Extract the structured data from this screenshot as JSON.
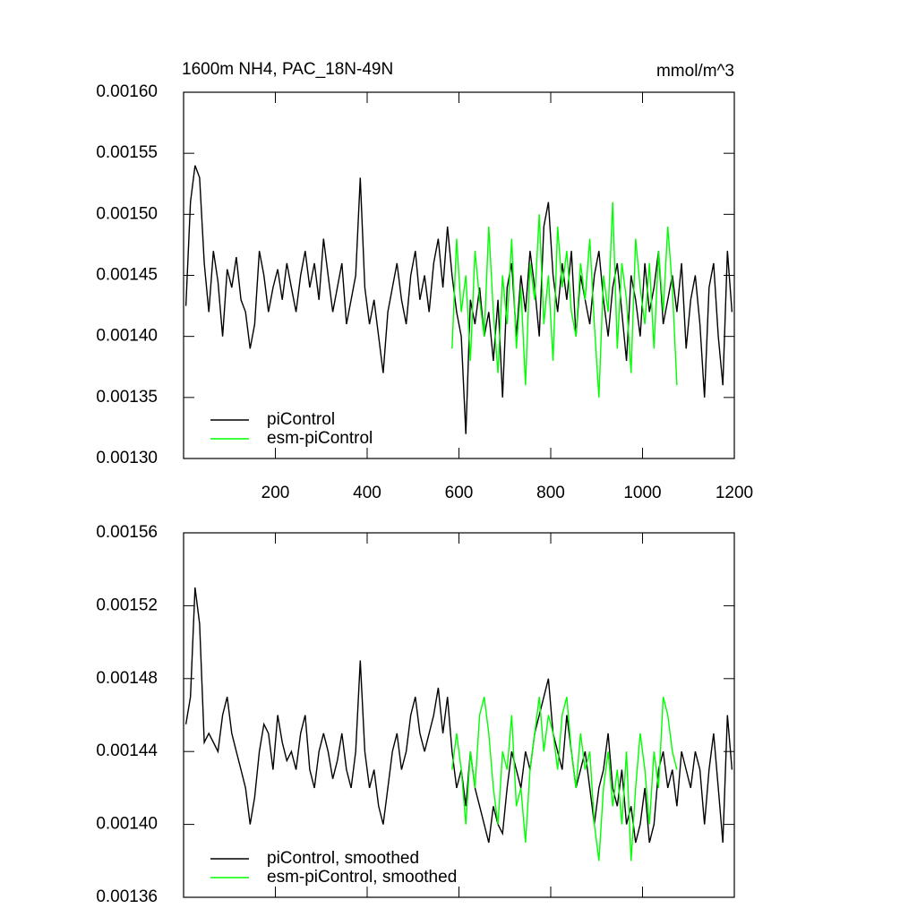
{
  "chart_data": [
    {
      "type": "line",
      "title": "1600m NH4, PAC_18N-49N",
      "units": "mmol/m^3",
      "xlim": [
        0,
        1200
      ],
      "ylim": [
        0.0013,
        0.0016
      ],
      "xticks": [
        200,
        400,
        600,
        800,
        1000,
        1200
      ],
      "xtick_labels": true,
      "yticks": [
        {
          "value": 0.0013,
          "label": "0.00130"
        },
        {
          "value": 0.00135,
          "label": "0.00135"
        },
        {
          "value": 0.0014,
          "label": "0.00140"
        },
        {
          "value": 0.00145,
          "label": "0.00145"
        },
        {
          "value": 0.0015,
          "label": "0.00150"
        },
        {
          "value": 0.00155,
          "label": "0.00155"
        },
        {
          "value": 0.0016,
          "label": "0.00160"
        }
      ],
      "legend": "lower left",
      "series": [
        {
          "name": "piControl",
          "color": "#000000",
          "x": [
            5,
            15,
            25,
            35,
            45,
            55,
            65,
            75,
            85,
            95,
            105,
            115,
            125,
            135,
            145,
            155,
            165,
            175,
            185,
            195,
            205,
            215,
            225,
            235,
            245,
            255,
            265,
            275,
            285,
            295,
            305,
            315,
            325,
            335,
            345,
            355,
            365,
            375,
            385,
            395,
            405,
            415,
            425,
            435,
            445,
            455,
            465,
            475,
            485,
            495,
            505,
            515,
            525,
            535,
            545,
            555,
            565,
            575,
            585,
            595,
            605,
            615,
            625,
            635,
            645,
            655,
            665,
            675,
            685,
            695,
            705,
            715,
            725,
            735,
            745,
            755,
            765,
            775,
            785,
            795,
            805,
            815,
            825,
            835,
            845,
            855,
            865,
            875,
            885,
            895,
            905,
            915,
            925,
            935,
            945,
            955,
            965,
            975,
            985,
            995,
            1005,
            1015,
            1025,
            1035,
            1045,
            1055,
            1065,
            1075,
            1085,
            1095,
            1105,
            1115,
            1125,
            1135,
            1145,
            1155,
            1165,
            1175,
            1185,
            1195
          ],
          "values": [
            0.001425,
            0.00151,
            0.00154,
            0.00153,
            0.00146,
            0.00142,
            0.00147,
            0.001445,
            0.0014,
            0.001455,
            0.00144,
            0.001465,
            0.00143,
            0.00142,
            0.00139,
            0.00141,
            0.00147,
            0.00145,
            0.00142,
            0.00144,
            0.001455,
            0.00143,
            0.00146,
            0.00144,
            0.00142,
            0.00145,
            0.00147,
            0.00144,
            0.00146,
            0.00143,
            0.00148,
            0.00145,
            0.00142,
            0.00144,
            0.00146,
            0.00141,
            0.00143,
            0.00145,
            0.00153,
            0.00144,
            0.00141,
            0.00143,
            0.0014,
            0.00137,
            0.00142,
            0.00144,
            0.00146,
            0.00143,
            0.00141,
            0.00145,
            0.00147,
            0.00143,
            0.00145,
            0.00142,
            0.00146,
            0.00148,
            0.00144,
            0.00149,
            0.00145,
            0.00142,
            0.0014,
            0.00132,
            0.00143,
            0.00141,
            0.00144,
            0.0014,
            0.00142,
            0.00138,
            0.00143,
            0.00135,
            0.00144,
            0.00146,
            0.0014,
            0.00145,
            0.00142,
            0.00147,
            0.00144,
            0.0014,
            0.00149,
            0.00151,
            0.00145,
            0.00142,
            0.00146,
            0.00143,
            0.00147,
            0.0014,
            0.00145,
            0.00143,
            0.00141,
            0.00145,
            0.00147,
            0.00143,
            0.0014,
            0.00144,
            0.00146,
            0.00142,
            0.00138,
            0.00145,
            0.00143,
            0.0014,
            0.00146,
            0.00142,
            0.00144,
            0.00147,
            0.00141,
            0.00143,
            0.00145,
            0.00142,
            0.00146,
            0.00139,
            0.00143,
            0.00145,
            0.00141,
            0.00135,
            0.00144,
            0.00146,
            0.0014,
            0.00136,
            0.00147,
            0.00142
          ]
        },
        {
          "name": "esm-piControl",
          "color": "#00ff00",
          "x": [
            585,
            595,
            605,
            615,
            625,
            635,
            645,
            655,
            665,
            675,
            685,
            695,
            705,
            715,
            725,
            735,
            745,
            755,
            765,
            775,
            785,
            795,
            805,
            815,
            825,
            835,
            845,
            855,
            865,
            875,
            885,
            895,
            905,
            915,
            925,
            935,
            945,
            955,
            965,
            975,
            985,
            995,
            1005,
            1015,
            1025,
            1035,
            1045,
            1055,
            1065,
            1075
          ],
          "values": [
            0.00139,
            0.00148,
            0.00142,
            0.00145,
            0.00138,
            0.00147,
            0.00143,
            0.0014,
            0.00149,
            0.00142,
            0.00137,
            0.00145,
            0.00141,
            0.00148,
            0.00139,
            0.00144,
            0.00136,
            0.00146,
            0.00143,
            0.0015,
            0.00141,
            0.00145,
            0.00138,
            0.00149,
            0.00144,
            0.00147,
            0.00142,
            0.0014,
            0.00146,
            0.00143,
            0.00148,
            0.00141,
            0.00135,
            0.00145,
            0.00142,
            0.00151,
            0.00139,
            0.00146,
            0.00143,
            0.00137,
            0.00148,
            0.00144,
            0.00141,
            0.00146,
            0.00139,
            0.00147,
            0.00142,
            0.00149,
            0.00144,
            0.00136
          ]
        }
      ]
    },
    {
      "type": "line",
      "xlim": [
        0,
        1200
      ],
      "ylim": [
        0.00136,
        0.00156
      ],
      "xticks": [
        200,
        400,
        600,
        800,
        1000,
        1200
      ],
      "xtick_labels": false,
      "yticks": [
        {
          "value": 0.00136,
          "label": "0.00136"
        },
        {
          "value": 0.0014,
          "label": "0.00140"
        },
        {
          "value": 0.00144,
          "label": "0.00144"
        },
        {
          "value": 0.00148,
          "label": "0.00148"
        },
        {
          "value": 0.00152,
          "label": "0.00152"
        },
        {
          "value": 0.00156,
          "label": "0.00156"
        }
      ],
      "legend": "lower left",
      "series": [
        {
          "name": "piControl, smoothed",
          "color": "#000000",
          "x": [
            5,
            15,
            25,
            35,
            45,
            55,
            65,
            75,
            85,
            95,
            105,
            115,
            125,
            135,
            145,
            155,
            165,
            175,
            185,
            195,
            205,
            215,
            225,
            235,
            245,
            255,
            265,
            275,
            285,
            295,
            305,
            315,
            325,
            335,
            345,
            355,
            365,
            375,
            385,
            395,
            405,
            415,
            425,
            435,
            445,
            455,
            465,
            475,
            485,
            495,
            505,
            515,
            525,
            535,
            545,
            555,
            565,
            575,
            585,
            595,
            605,
            615,
            625,
            635,
            645,
            655,
            665,
            675,
            685,
            695,
            705,
            715,
            725,
            735,
            745,
            755,
            765,
            775,
            785,
            795,
            805,
            815,
            825,
            835,
            845,
            855,
            865,
            875,
            885,
            895,
            905,
            915,
            925,
            935,
            945,
            955,
            965,
            975,
            985,
            995,
            1005,
            1015,
            1025,
            1035,
            1045,
            1055,
            1065,
            1075,
            1085,
            1095,
            1105,
            1115,
            1125,
            1135,
            1145,
            1155,
            1165,
            1175,
            1185,
            1195
          ],
          "values": [
            0.001455,
            0.00147,
            0.00153,
            0.00151,
            0.001445,
            0.00145,
            0.001445,
            0.00144,
            0.00146,
            0.00147,
            0.00145,
            0.00144,
            0.00143,
            0.00142,
            0.0014,
            0.001415,
            0.00144,
            0.001455,
            0.00145,
            0.00143,
            0.00146,
            0.001445,
            0.001435,
            0.00144,
            0.00143,
            0.00145,
            0.00146,
            0.00143,
            0.00142,
            0.00144,
            0.00145,
            0.00144,
            0.001425,
            0.001435,
            0.00145,
            0.00143,
            0.00142,
            0.00144,
            0.00149,
            0.00144,
            0.00142,
            0.00143,
            0.00141,
            0.0014,
            0.00142,
            0.00144,
            0.00145,
            0.00143,
            0.00144,
            0.00146,
            0.00147,
            0.00145,
            0.00144,
            0.00145,
            0.00146,
            0.001475,
            0.00145,
            0.00147,
            0.00144,
            0.00142,
            0.00143,
            0.00141,
            0.00144,
            0.00142,
            0.00141,
            0.0014,
            0.00139,
            0.00141,
            0.0014,
            0.001395,
            0.00142,
            0.00144,
            0.00143,
            0.00142,
            0.00144,
            0.00143,
            0.00145,
            0.00146,
            0.00147,
            0.00148,
            0.00145,
            0.00144,
            0.00143,
            0.00146,
            0.00144,
            0.00142,
            0.00143,
            0.00144,
            0.00142,
            0.0014,
            0.00142,
            0.00143,
            0.00145,
            0.00142,
            0.00141,
            0.00143,
            0.0014,
            0.00141,
            0.00139,
            0.0014,
            0.00142,
            0.00139,
            0.0014,
            0.00143,
            0.00144,
            0.00142,
            0.00143,
            0.00141,
            0.00144,
            0.00143,
            0.00142,
            0.00144,
            0.00143,
            0.0014,
            0.00143,
            0.00145,
            0.00142,
            0.00139,
            0.00146,
            0.00143
          ]
        },
        {
          "name": "esm-piControl, smoothed",
          "color": "#00ff00",
          "x": [
            585,
            595,
            605,
            615,
            625,
            635,
            645,
            655,
            665,
            675,
            685,
            695,
            705,
            715,
            725,
            735,
            745,
            755,
            765,
            775,
            785,
            795,
            805,
            815,
            825,
            835,
            845,
            855,
            865,
            875,
            885,
            895,
            905,
            915,
            925,
            935,
            945,
            955,
            965,
            975,
            985,
            995,
            1005,
            1015,
            1025,
            1035,
            1045,
            1055,
            1065,
            1075
          ],
          "values": [
            0.00143,
            0.00145,
            0.00143,
            0.0014,
            0.00144,
            0.00142,
            0.00146,
            0.00147,
            0.00145,
            0.00142,
            0.0014,
            0.00144,
            0.00143,
            0.00146,
            0.00141,
            0.00142,
            0.00139,
            0.00143,
            0.00145,
            0.00147,
            0.00144,
            0.00146,
            0.00145,
            0.00143,
            0.00146,
            0.00147,
            0.00144,
            0.00142,
            0.00145,
            0.00143,
            0.00144,
            0.0014,
            0.00138,
            0.00142,
            0.00144,
            0.00141,
            0.00143,
            0.0014,
            0.00144,
            0.00138,
            0.00142,
            0.00145,
            0.00143,
            0.0014,
            0.00144,
            0.00142,
            0.00147,
            0.00146,
            0.00144,
            0.00143
          ]
        }
      ]
    }
  ]
}
